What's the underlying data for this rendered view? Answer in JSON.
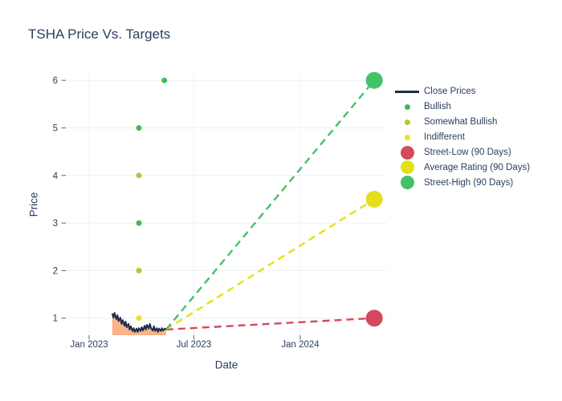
{
  "title": "TSHA Price Vs. Targets",
  "axes": {
    "x": {
      "label": "Date",
      "ticks": [
        {
          "label": "Jan 2023",
          "date": "2023-01-01"
        },
        {
          "label": "Jul 2023",
          "date": "2023-07-01"
        },
        {
          "label": "Jan 2024",
          "date": "2024-01-01"
        }
      ]
    },
    "y": {
      "label": "Price",
      "ticks": [
        1,
        2,
        3,
        4,
        5,
        6
      ],
      "range_approx": [
        0.64,
        6.2
      ]
    }
  },
  "legend": [
    {
      "label": "Close Prices",
      "symbol": "line",
      "color": "#1c2b4d"
    },
    {
      "label": "Bullish",
      "symbol": "dot-small",
      "color": "#3dbc57"
    },
    {
      "label": "Somewhat Bullish",
      "symbol": "dot-small",
      "color": "#a6ce38"
    },
    {
      "label": "Indifferent",
      "symbol": "dot-small",
      "color": "#e7e424"
    },
    {
      "label": "Street-Low (90 Days)",
      "symbol": "dot-large",
      "color": "#d4495c"
    },
    {
      "label": "Average Rating (90 Days)",
      "symbol": "dot-large",
      "color": "#e3e019"
    },
    {
      "label": "Street-High (90 Days)",
      "symbol": "dot-large",
      "color": "#43c268"
    }
  ],
  "chart_data": {
    "type": "line",
    "title": "TSHA Price Vs. Targets",
    "xlabel": "Date",
    "ylabel": "Price",
    "x_tick_labels": [
      "Jan 2023",
      "Jul 2023",
      "Jan 2024"
    ],
    "y_tick_labels": [
      1,
      2,
      3,
      4,
      5,
      6
    ],
    "grid": true,
    "legend_position": "right",
    "close_prices": {
      "name": "Close Prices",
      "line_color": "#1c2b4d",
      "fill_color": "#fab487",
      "dates": [
        "2023-02-10",
        "2023-02-12",
        "2023-02-14",
        "2023-02-17",
        "2023-02-19",
        "2023-02-21",
        "2023-02-24",
        "2023-02-26",
        "2023-02-28",
        "2023-03-03",
        "2023-03-05",
        "2023-03-07",
        "2023-03-10",
        "2023-03-12",
        "2023-03-14",
        "2023-03-17",
        "2023-03-19",
        "2023-03-21",
        "2023-03-24",
        "2023-03-26",
        "2023-03-28",
        "2023-03-31",
        "2023-04-02",
        "2023-04-04",
        "2023-04-07",
        "2023-04-09",
        "2023-04-11",
        "2023-04-14",
        "2023-04-16",
        "2023-04-18",
        "2023-04-21",
        "2023-04-23",
        "2023-04-25",
        "2023-04-28",
        "2023-04-30",
        "2023-05-02",
        "2023-05-05",
        "2023-05-07",
        "2023-05-09",
        "2023-05-12",
        "2023-05-14"
      ],
      "values": [
        1.1,
        1.01,
        1.11,
        0.98,
        1.06,
        0.94,
        1.01,
        0.88,
        0.96,
        0.84,
        0.93,
        0.81,
        0.88,
        0.76,
        0.83,
        0.73,
        0.79,
        0.71,
        0.78,
        0.71,
        0.79,
        0.73,
        0.81,
        0.74,
        0.84,
        0.76,
        0.86,
        0.78,
        0.88,
        0.79,
        0.74,
        0.83,
        0.73,
        0.79,
        0.71,
        0.78,
        0.73,
        0.79,
        0.74,
        0.78,
        0.76
      ]
    },
    "rating_colors": {
      "Bullish": "#3dbc57",
      "Somewhat Bullish": "#a6ce38",
      "Indifferent": "#e7e424"
    },
    "ratings": [
      {
        "label": "Bullish",
        "date": "2023-03-28",
        "price": 5
      },
      {
        "label": "Somewhat Bullish",
        "date": "2023-03-28",
        "price": 4
      },
      {
        "label": "Bullish",
        "date": "2023-03-28",
        "price": 3
      },
      {
        "label": "Somewhat Bullish",
        "date": "2023-03-28",
        "price": 2
      },
      {
        "label": "Indifferent",
        "date": "2023-03-28",
        "price": 1
      },
      {
        "label": "Bullish",
        "date": "2023-05-11",
        "price": 6
      }
    ],
    "targets": [
      {
        "label": "Street-Low (90 Days)",
        "date": "2024-05-08",
        "price": 1.0,
        "color": "#d4495c",
        "line_style": "dashed"
      },
      {
        "label": "Average Rating (90 Days)",
        "date": "2024-05-08",
        "price": 3.5,
        "color": "#e3e019",
        "line_style": "dashed"
      },
      {
        "label": "Street-High (90 Days)",
        "date": "2024-05-08",
        "price": 6.0,
        "color": "#43c268",
        "line_style": "dashed"
      }
    ]
  }
}
